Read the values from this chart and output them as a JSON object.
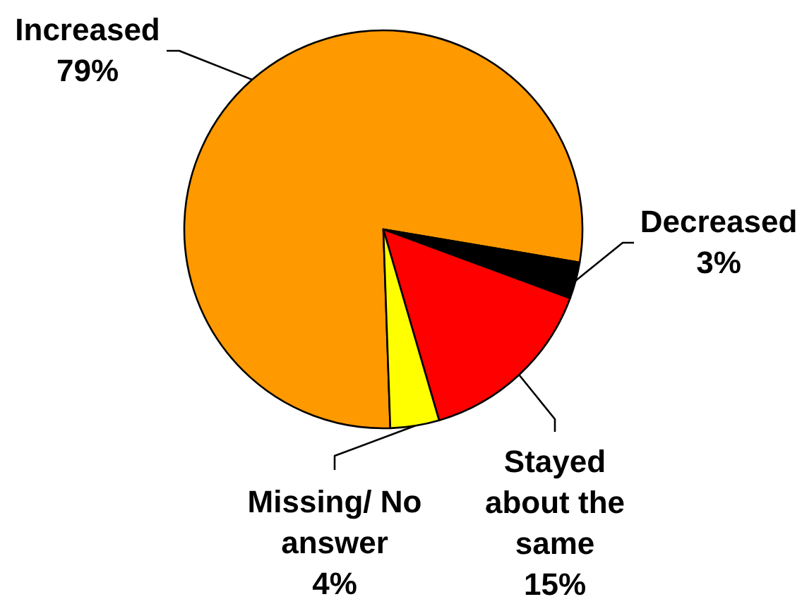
{
  "chart_data": {
    "type": "pie",
    "categories": [
      "Increased",
      "Decreased",
      "Stayed about the same",
      "Missing/ No answer"
    ],
    "values": [
      79,
      3,
      15,
      4
    ],
    "colors": [
      "#ff9900",
      "#000000",
      "#ff0000",
      "#ffff00"
    ],
    "value_labels": [
      "79%",
      "3%",
      "15%",
      "4%"
    ]
  }
}
